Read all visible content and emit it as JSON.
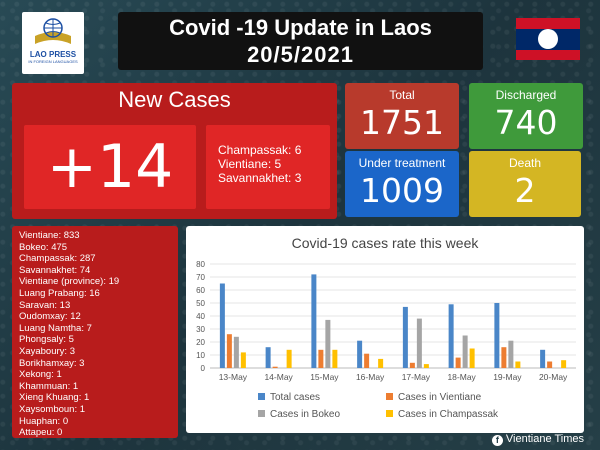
{
  "logo": {
    "line1": "LAO PRESS",
    "line2": "IN FOREIGN LANGUAGES"
  },
  "header": {
    "title": "Covid -19 Update in Laos",
    "date": "20/5/2021"
  },
  "new_cases": {
    "label": "New Cases",
    "value": "+14",
    "breakdown": [
      "Champassak: 6",
      "Vientiane: 5",
      "Savannakhet: 3"
    ]
  },
  "stats": {
    "total": {
      "label": "Total",
      "value": "1751"
    },
    "discharged": {
      "label": "Discharged",
      "value": "740"
    },
    "under_treatment": {
      "label": "Under treatment",
      "value": "1009"
    },
    "death": {
      "label": "Death",
      "value": "2"
    }
  },
  "provinces": [
    "Vientiane: 833",
    "Bokeo: 475",
    "Champassak: 287",
    "Savannakhet: 74",
    "Vientiane (province): 19",
    "Luang Prabang: 16",
    "Saravan: 13",
    "Oudomxay: 12",
    "Luang Namtha: 7",
    "Phongsaly: 5",
    "Xayaboury: 3",
    "Borikhamxay: 3",
    "Xekong: 1",
    "Khammuan: 1",
    "Xieng Khuang: 1",
    "Xaysomboun: 1",
    "Huaphan: 0",
    "Attapeu: 0"
  ],
  "chart_data": {
    "type": "bar",
    "title": "Covid-19 cases rate this week",
    "categories": [
      "13-May",
      "14-May",
      "15-May",
      "16-May",
      "17-May",
      "18-May",
      "19-May",
      "20-May"
    ],
    "ylim": [
      0,
      80
    ],
    "yticks": [
      0,
      10,
      20,
      30,
      40,
      50,
      60,
      70,
      80
    ],
    "series": [
      {
        "name": "Total cases",
        "color": "#4a86c8",
        "values": [
          65,
          16,
          72,
          21,
          47,
          49,
          50,
          14
        ]
      },
      {
        "name": "Cases in Vientiane",
        "color": "#ed7d31",
        "values": [
          26,
          1,
          14,
          11,
          4,
          8,
          16,
          5
        ]
      },
      {
        "name": "Cases in Bokeo",
        "color": "#a5a5a5",
        "values": [
          24,
          0,
          37,
          0,
          38,
          25,
          21,
          0
        ]
      },
      {
        "name": "Cases in Champassak",
        "color": "#ffc000",
        "values": [
          12,
          14,
          14,
          7,
          3,
          15,
          5,
          6
        ]
      }
    ],
    "legend_position": "bottom"
  },
  "footer": {
    "icon": "facebook-icon",
    "text": "Vientiane Times"
  }
}
